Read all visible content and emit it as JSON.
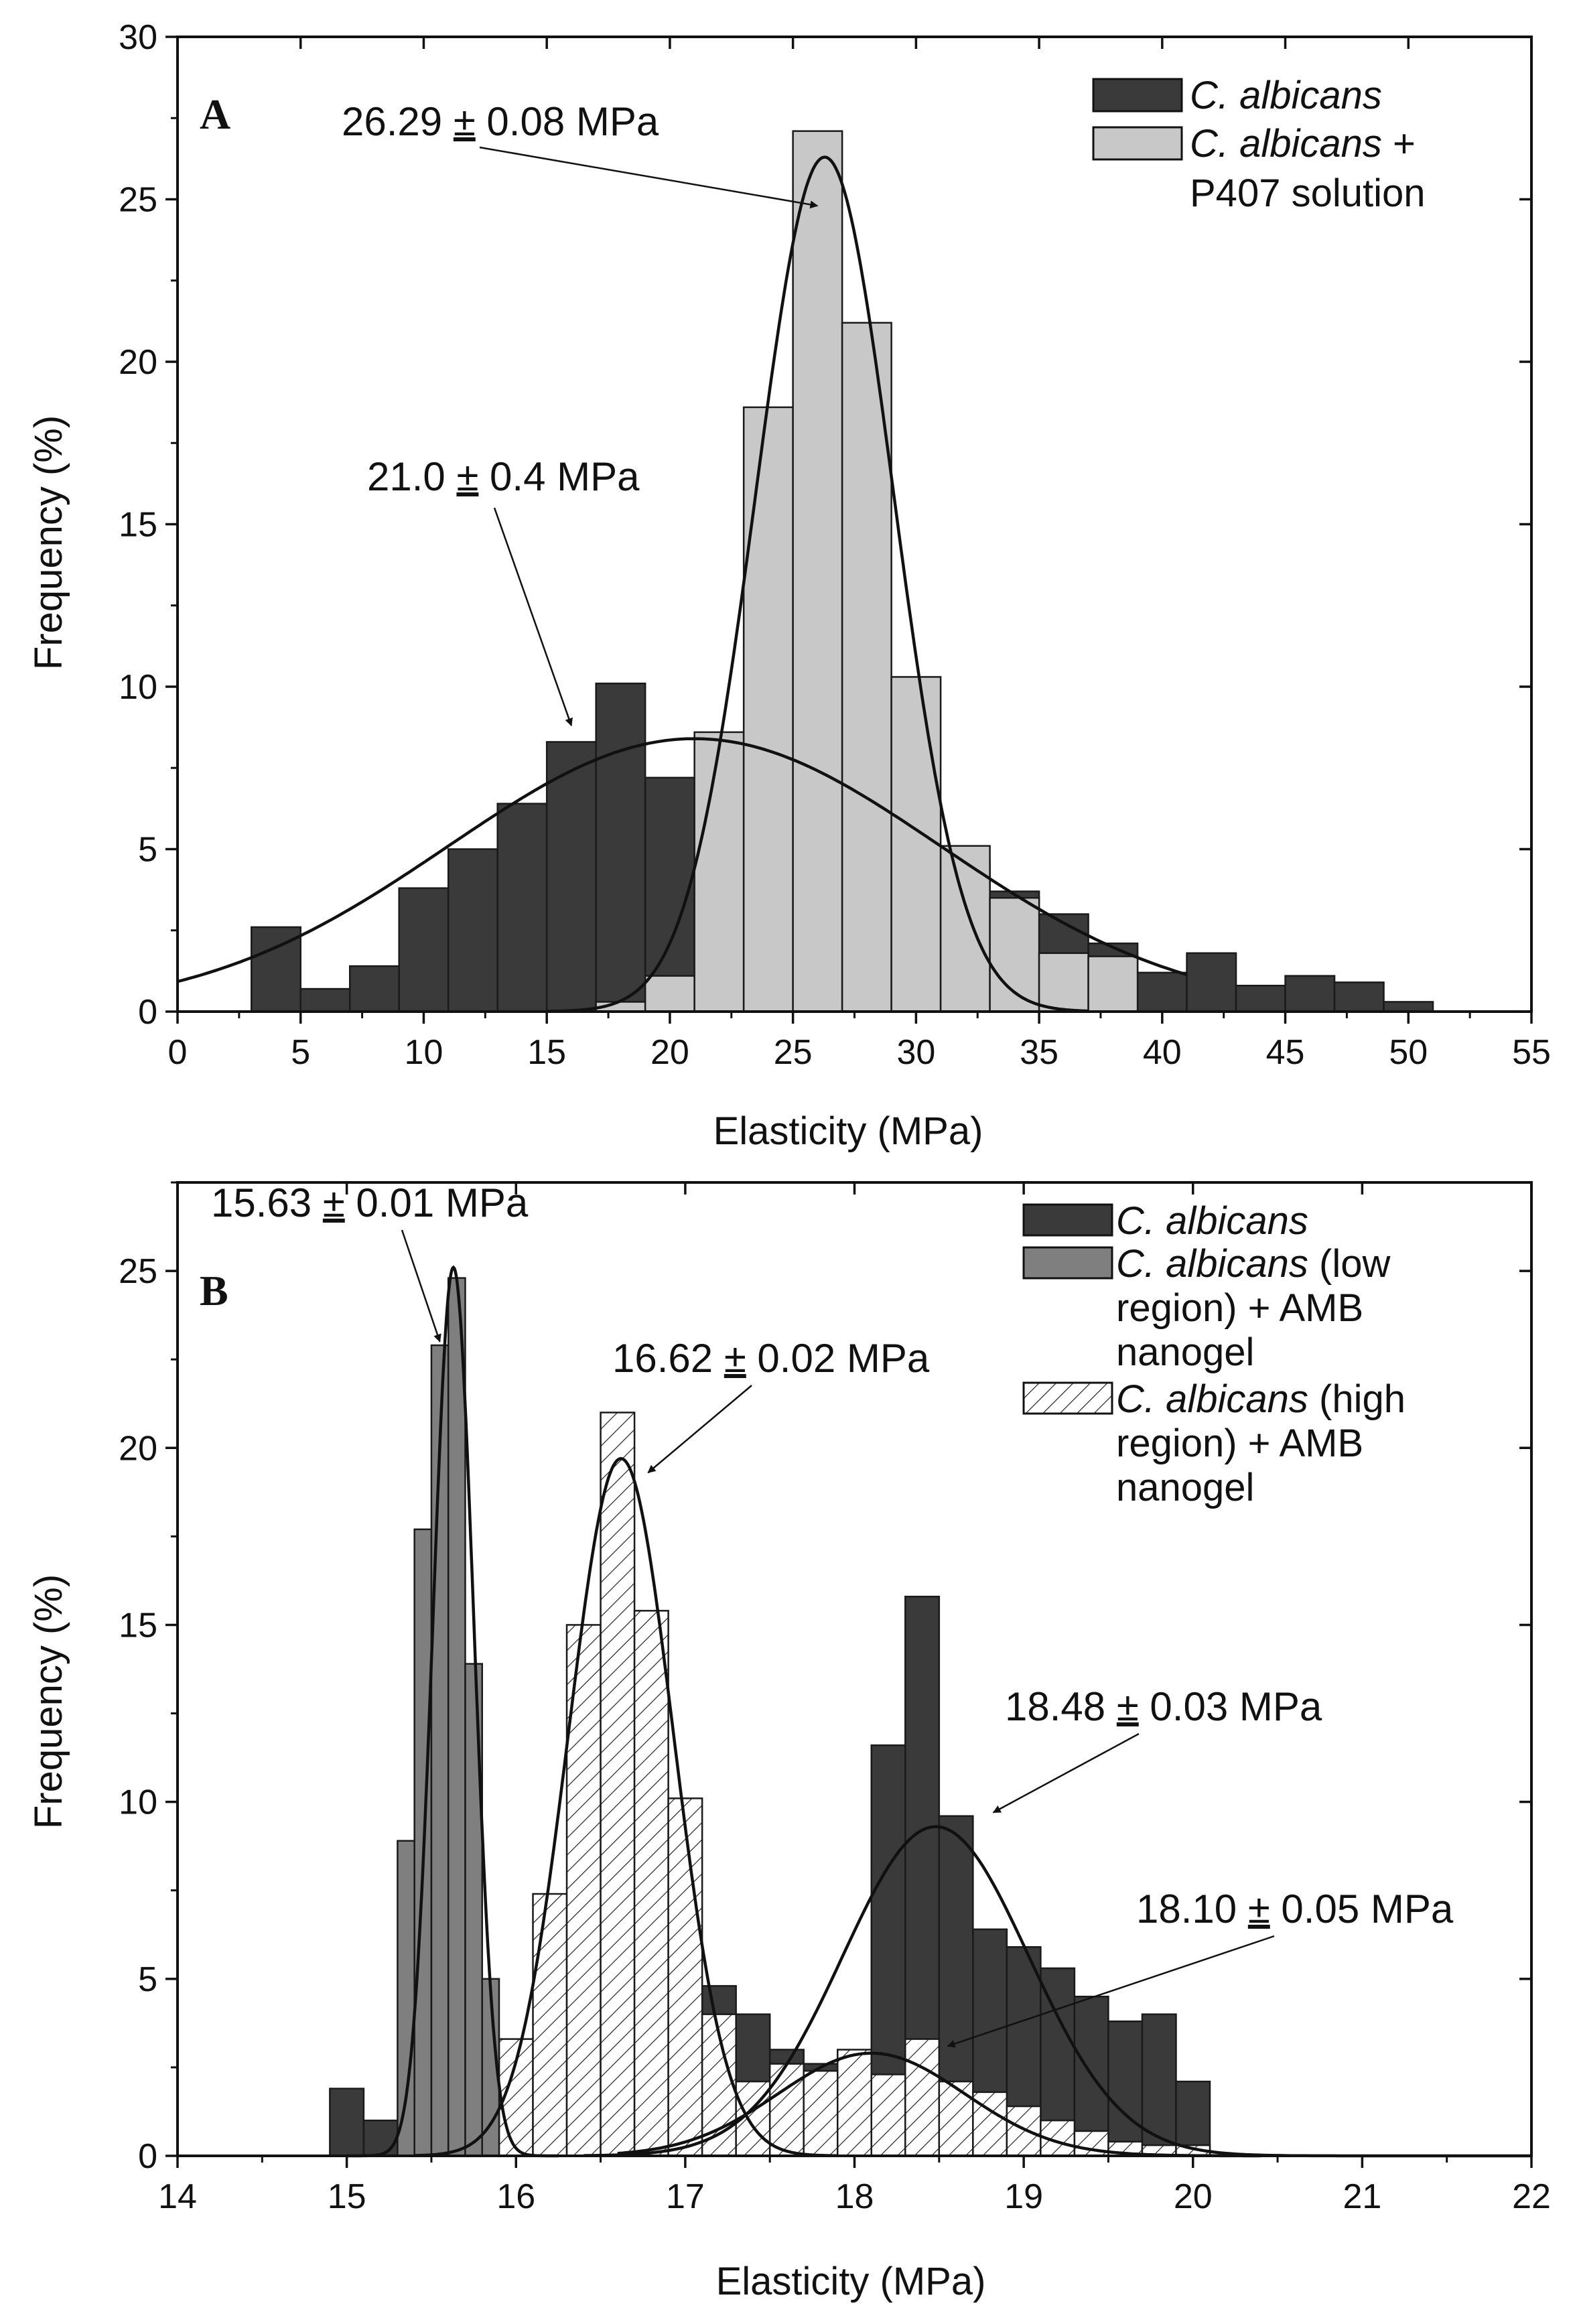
{
  "colors": {
    "dark": "#3a3a3a",
    "light": "#c8c8c8",
    "mid": "#7f7f7f",
    "hatch": "#ffffff",
    "edge": "#1a1a1a"
  },
  "chart_data": [
    {
      "type": "bar",
      "panel": "A",
      "xlabel": "Elasticity (MPa)",
      "ylabel": "Frequency (%)",
      "xlim": [
        0,
        55
      ],
      "ylim": [
        0,
        30
      ],
      "xticks": [
        0,
        5,
        10,
        15,
        20,
        25,
        30,
        35,
        40,
        45,
        50,
        55
      ],
      "yticks": [
        0,
        5,
        10,
        15,
        20,
        25,
        30
      ],
      "bin_width": 2,
      "legend_position": "top-right",
      "legend": [
        {
          "label_italic": "C. albicans",
          "label_rest": "",
          "label_line2": ""
        },
        {
          "label_italic": "C. albicans",
          "label_rest": " +",
          "label_line2": "P407 solution"
        }
      ],
      "series": [
        {
          "name": "C. albicans",
          "style": "dark",
          "bin_starts": [
            3,
            5,
            7,
            9,
            11,
            13,
            15,
            17,
            19,
            21,
            23,
            25,
            27,
            29,
            31,
            33,
            35,
            37,
            39,
            41,
            43,
            45,
            47,
            49
          ],
          "values": [
            2.6,
            0.7,
            1.4,
            3.8,
            5.0,
            6.4,
            8.3,
            10.1,
            7.2,
            3.6,
            3.4,
            4.3,
            5.1,
            4.7,
            4.6,
            3.7,
            3.0,
            2.1,
            1.2,
            1.8,
            0.8,
            1.1,
            0.9,
            0.3
          ],
          "fit": {
            "mu": 21.0,
            "sigma": 10.0,
            "peak": 8.4,
            "x_from": 0,
            "x_to": 41
          }
        },
        {
          "name": "C. albicans + P407 solution",
          "style": "light",
          "bin_starts": [
            17,
            19,
            21,
            23,
            25,
            27,
            29,
            31,
            33,
            35,
            37
          ],
          "values": [
            0.3,
            1.1,
            8.6,
            18.6,
            27.1,
            21.2,
            10.3,
            5.1,
            3.5,
            1.8,
            1.7
          ],
          "fit": {
            "mu": 26.29,
            "sigma": 2.8,
            "peak": 26.3,
            "x_from": 15,
            "x_to": 37
          }
        }
      ],
      "annotations": [
        {
          "text_main": "26.29 ",
          "pm": "±",
          "text_rest": " 0.08 MPa",
          "points_to": [
            26.0,
            24.8
          ]
        },
        {
          "text_main": "21.0 ",
          "pm": "±",
          "text_rest": " 0.4 MPa",
          "points_to": [
            16.0,
            8.8
          ]
        }
      ]
    },
    {
      "type": "bar",
      "panel": "B",
      "xlabel": "Elasticity (MPa)",
      "ylabel": "Frequency (%)",
      "xlim": [
        14,
        22
      ],
      "ylim": [
        0,
        27.5
      ],
      "xticks": [
        14,
        15,
        16,
        17,
        18,
        19,
        20,
        21,
        22
      ],
      "yticks": [
        0,
        5,
        10,
        15,
        20,
        25
      ],
      "bin_width": 0.2,
      "legend_position": "top-right",
      "legend": [
        {
          "label_italic": "C. albicans",
          "label_rest": "",
          "label_line2": "",
          "label_line3": ""
        },
        {
          "label_italic": "C. albicans",
          "label_rest": " (low",
          "label_line2": "region) + AMB",
          "label_line3": "nanogel"
        },
        {
          "label_italic": "C. albicans",
          "label_rest": " (high",
          "label_line2": "region) + AMB",
          "label_line3": "nanogel"
        }
      ],
      "series": [
        {
          "name": "C. albicans",
          "style": "dark",
          "bin_starts": [
            14.9,
            15.1,
            15.3,
            17.1,
            17.3,
            17.5,
            17.7,
            17.9,
            18.1,
            18.3,
            18.5,
            18.7,
            18.9,
            19.1,
            19.3,
            19.5,
            19.7,
            19.9
          ],
          "values": [
            1.9,
            1.0,
            0.7,
            4.8,
            4.0,
            3.0,
            2.6,
            2.8,
            11.6,
            15.8,
            9.6,
            6.4,
            5.9,
            5.3,
            4.5,
            3.8,
            4.0,
            2.1
          ],
          "fit": {
            "mu": 18.48,
            "sigma": 0.55,
            "peak": 9.3,
            "x_from": 16.4,
            "x_to": 22
          }
        },
        {
          "name": "C. albicans (low region) + AMB nanogel",
          "style": "mid",
          "bin_starts": [
            15.3,
            15.4,
            15.5,
            15.6,
            15.7,
            15.8
          ],
          "values": [
            8.9,
            17.7,
            22.9,
            24.8,
            13.9,
            5.0
          ],
          "fit": {
            "mu": 15.63,
            "sigma": 0.12,
            "peak": 25.1,
            "x_from": 15.0,
            "x_to": 16.25
          }
        },
        {
          "name": "C. albicans (high region) + AMB nanogel",
          "style": "hatch",
          "bin_starts": [
            15.7,
            15.9,
            16.1,
            16.3,
            16.5,
            16.7,
            16.9,
            17.1,
            17.3,
            17.5,
            17.7,
            17.9,
            18.1,
            18.3,
            18.5,
            18.7,
            18.9,
            19.1,
            19.3,
            19.5,
            19.7,
            19.9
          ],
          "values": [
            2.1,
            3.3,
            7.4,
            15.0,
            21.0,
            15.4,
            10.1,
            4.0,
            2.1,
            2.6,
            2.4,
            3.0,
            2.3,
            3.3,
            2.1,
            1.8,
            1.4,
            1.0,
            0.7,
            0.4,
            0.3,
            0.3
          ],
          "fit": {
            "mu": 16.62,
            "sigma": 0.31,
            "peak": 19.7,
            "x_from": 15.4,
            "x_to": 17.9
          }
        }
      ],
      "extra_fit": {
        "mu": 18.1,
        "sigma": 0.55,
        "peak": 2.9,
        "x_from": 16.6,
        "x_to": 20.4
      },
      "annotations": [
        {
          "text_main": "15.63 ",
          "pm": "±",
          "text_rest": " 0.01 MPa",
          "points_to": [
            15.55,
            23.0
          ]
        },
        {
          "text_main": "16.62 ",
          "pm": "±",
          "text_rest": " 0.02 MPa",
          "points_to": [
            16.78,
            19.3
          ]
        },
        {
          "text_main": "18.48 ",
          "pm": "±",
          "text_rest": " 0.03 MPa",
          "points_to": [
            18.82,
            9.7
          ]
        },
        {
          "text_main": "18.10 ",
          "pm": "±",
          "text_rest": " 0.05 MPa",
          "points_to": [
            18.55,
            3.1
          ]
        }
      ]
    }
  ]
}
